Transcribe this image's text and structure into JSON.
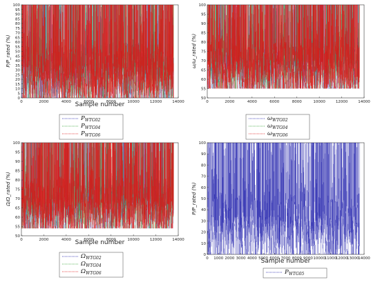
{
  "chart_data": [
    {
      "type": "scatter",
      "xlabel": "Sample number",
      "ylabel": "P/P_rated (%)",
      "xlim": [
        0,
        14000
      ],
      "ylim": [
        0,
        100
      ],
      "xticks": [
        0,
        2000,
        4000,
        6000,
        8000,
        10000,
        12000,
        14000
      ],
      "yticks": [
        0,
        5,
        10,
        15,
        20,
        25,
        30,
        35,
        40,
        45,
        50,
        55,
        60,
        65,
        70,
        75,
        80,
        85,
        90,
        95,
        100
      ],
      "legend_position": "below",
      "series": [
        {
          "name": "P_WTG02",
          "color": "#1a1aaa"
        },
        {
          "name": "P_WTG04",
          "color": "#2ea02e"
        },
        {
          "name": "P_WTG06",
          "color": "#e01010"
        }
      ],
      "samples": 13600,
      "value_range": [
        0,
        100
      ]
    },
    {
      "type": "scatter",
      "xlabel": "",
      "ylabel": "ω/ω_rated (%)",
      "xlim": [
        0,
        14000
      ],
      "ylim": [
        50,
        100
      ],
      "xticks": [
        0,
        2000,
        4000,
        6000,
        8000,
        10000,
        12000,
        14000
      ],
      "yticks": [
        50,
        55,
        60,
        65,
        70,
        75,
        80,
        85,
        90,
        95,
        100
      ],
      "legend_position": "below",
      "series": [
        {
          "name": "ω_WTG02",
          "color": "#1a1aaa"
        },
        {
          "name": "ω_WTG04",
          "color": "#2ea02e"
        },
        {
          "name": "ω_WTG06",
          "color": "#e01010"
        }
      ],
      "samples": 13600,
      "value_range": [
        55,
        100
      ]
    },
    {
      "type": "scatter",
      "xlabel": "Sample number",
      "ylabel": "Ω/Ω_rated (%)",
      "xlim": [
        0,
        14000
      ],
      "ylim": [
        50,
        100
      ],
      "xticks": [
        0,
        2000,
        4000,
        6000,
        8000,
        10000,
        12000,
        14000
      ],
      "yticks": [
        50,
        55,
        60,
        65,
        70,
        75,
        80,
        85,
        90,
        95,
        100
      ],
      "legend_position": "below",
      "series": [
        {
          "name": "Ω_WTG02",
          "color": "#1a1aaa"
        },
        {
          "name": "Ω_WTG04",
          "color": "#2ea02e"
        },
        {
          "name": "Ω_WTG06",
          "color": "#e01010"
        }
      ],
      "samples": 13600,
      "value_range": [
        54,
        100
      ]
    },
    {
      "type": "scatter",
      "xlabel": "Sample number",
      "ylabel": "P/P_rated (%)",
      "xlim": [
        0,
        14000
      ],
      "ylim": [
        0,
        100
      ],
      "xticks": [
        0,
        1000,
        2000,
        3000,
        4000,
        5000,
        6000,
        7000,
        8000,
        9000,
        10000,
        11000,
        12000,
        13000,
        14000
      ],
      "yticks": [
        0,
        10,
        20,
        30,
        40,
        50,
        60,
        70,
        80,
        90,
        100
      ],
      "legend_position": "below",
      "series": [
        {
          "name": "P_WTG05",
          "color": "#1a1aaa"
        }
      ],
      "samples": 13600,
      "value_range": [
        0,
        100
      ]
    }
  ]
}
